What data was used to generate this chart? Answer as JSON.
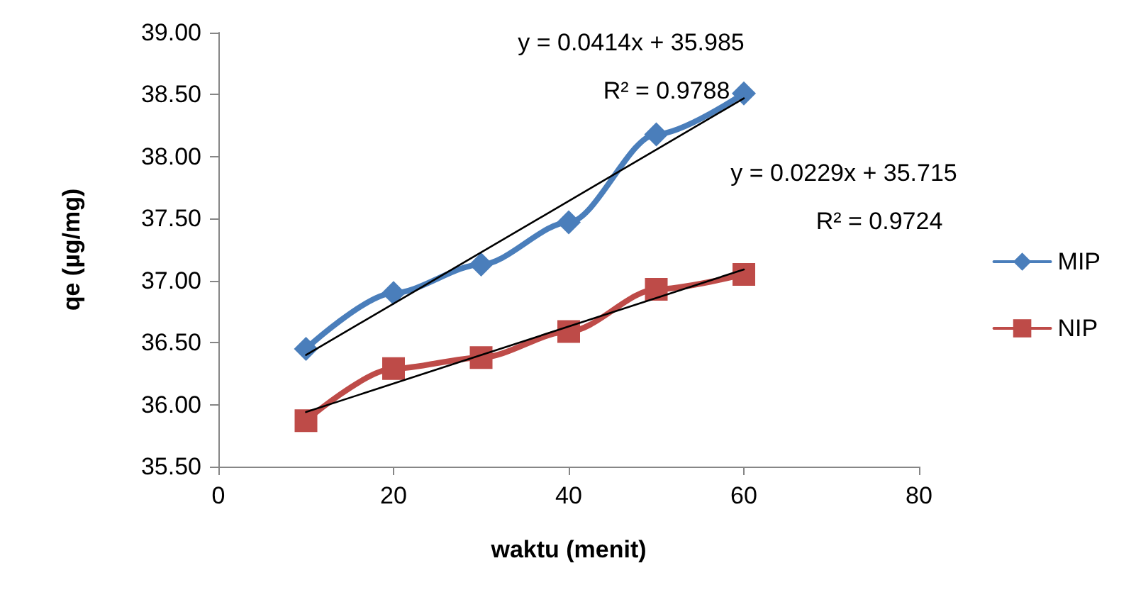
{
  "chart_data": {
    "type": "line",
    "xlabel": "waktu (menit)",
    "ylabel": "qe (µg/mg)",
    "series": [
      {
        "name": "MIP",
        "color": "#4a7ebb",
        "marker": "diamond",
        "x": [
          10,
          20,
          30,
          40,
          50,
          60
        ],
        "values": [
          36.45,
          36.9,
          37.13,
          37.47,
          38.18,
          38.51
        ]
      },
      {
        "name": "NIP",
        "color": "#be4b48",
        "marker": "square",
        "x": [
          10,
          20,
          30,
          40,
          50,
          60
        ],
        "values": [
          35.87,
          36.29,
          36.38,
          36.59,
          36.93,
          37.05
        ]
      },
      {
        "color": "#000000",
        "marker": "none",
        "x": [
          10,
          60
        ],
        "values": [
          36.4,
          38.47
        ]
      },
      {
        "color": "#000000",
        "marker": "none",
        "x": [
          10,
          60
        ],
        "values": [
          35.94,
          37.09
        ]
      }
    ],
    "annotations": [
      "y = 0.0414x + 35.985",
      "R² = 0.9788",
      "y = 0.0229x + 35.715",
      "R² = 0.9724"
    ],
    "xlim": [
      0,
      80
    ],
    "xticks": [
      0,
      20,
      40,
      60,
      80
    ],
    "ylim": [
      35.5,
      39
    ],
    "yticks": [
      {
        "value": 35.5,
        "label": "35.50"
      },
      {
        "value": 36,
        "label": "36.00"
      },
      {
        "value": 36.5,
        "label": "36.50"
      },
      {
        "value": 37,
        "label": "37.00"
      },
      {
        "value": 37.5,
        "label": "37.50"
      },
      {
        "value": 38,
        "label": "38.00"
      },
      {
        "value": 38.5,
        "label": "38.50"
      },
      {
        "value": 39,
        "label": "39.00"
      }
    ],
    "grid": false,
    "legend": "right",
    "line_style": "solid"
  }
}
